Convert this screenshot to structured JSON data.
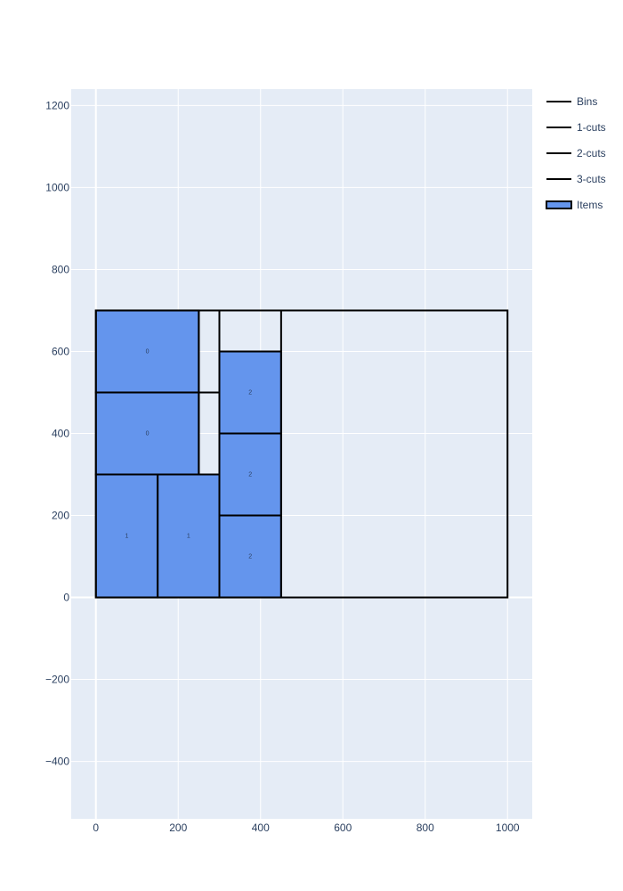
{
  "chart_data": {
    "type": "scatter",
    "xlim": [
      -60,
      1060
    ],
    "ylim": [
      -540,
      1240
    ],
    "x_ticks": [
      0,
      200,
      400,
      600,
      800,
      1000
    ],
    "y_ticks": [
      -400,
      -200,
      0,
      200,
      400,
      600,
      800,
      1000,
      1200
    ],
    "grid": true,
    "legend_position": "top-right",
    "legend": [
      "Bins",
      "1-cuts",
      "2-cuts",
      "3-cuts",
      "Items"
    ],
    "colors": {
      "plot_bg": "#E5ECF6",
      "grid": "#ffffff",
      "item_fill": "#6495ED",
      "line": "#000000",
      "text": "#2a3f5f"
    },
    "bins": [
      {
        "x0": 0,
        "y0": 0,
        "x1": 1000,
        "y1": 700
      }
    ],
    "one_cuts": [
      {
        "x0": 300,
        "y0": 0,
        "x1": 300,
        "y1": 700
      },
      {
        "x0": 450,
        "y0": 0,
        "x1": 450,
        "y1": 700
      }
    ],
    "two_cuts": [
      {
        "x0": 0,
        "y0": 300,
        "x1": 300,
        "y1": 300
      },
      {
        "x0": 0,
        "y0": 500,
        "x1": 300,
        "y1": 500
      },
      {
        "x0": 300,
        "y0": 600,
        "x1": 450,
        "y1": 600
      }
    ],
    "three_cuts": [
      {
        "x0": 150,
        "y0": 0,
        "x1": 150,
        "y1": 300
      },
      {
        "x0": 250,
        "y0": 300,
        "x1": 250,
        "y1": 700
      }
    ],
    "items": [
      {
        "x0": 0,
        "y0": 500,
        "x1": 250,
        "y1": 700,
        "label": "0"
      },
      {
        "x0": 0,
        "y0": 300,
        "x1": 250,
        "y1": 500,
        "label": "0"
      },
      {
        "x0": 0,
        "y0": 0,
        "x1": 150,
        "y1": 300,
        "label": "1"
      },
      {
        "x0": 150,
        "y0": 0,
        "x1": 300,
        "y1": 300,
        "label": "1"
      },
      {
        "x0": 300,
        "y0": 400,
        "x1": 450,
        "y1": 600,
        "label": "2"
      },
      {
        "x0": 300,
        "y0": 200,
        "x1": 450,
        "y1": 400,
        "label": "2"
      },
      {
        "x0": 300,
        "y0": 0,
        "x1": 450,
        "y1": 200,
        "label": "2"
      }
    ]
  }
}
